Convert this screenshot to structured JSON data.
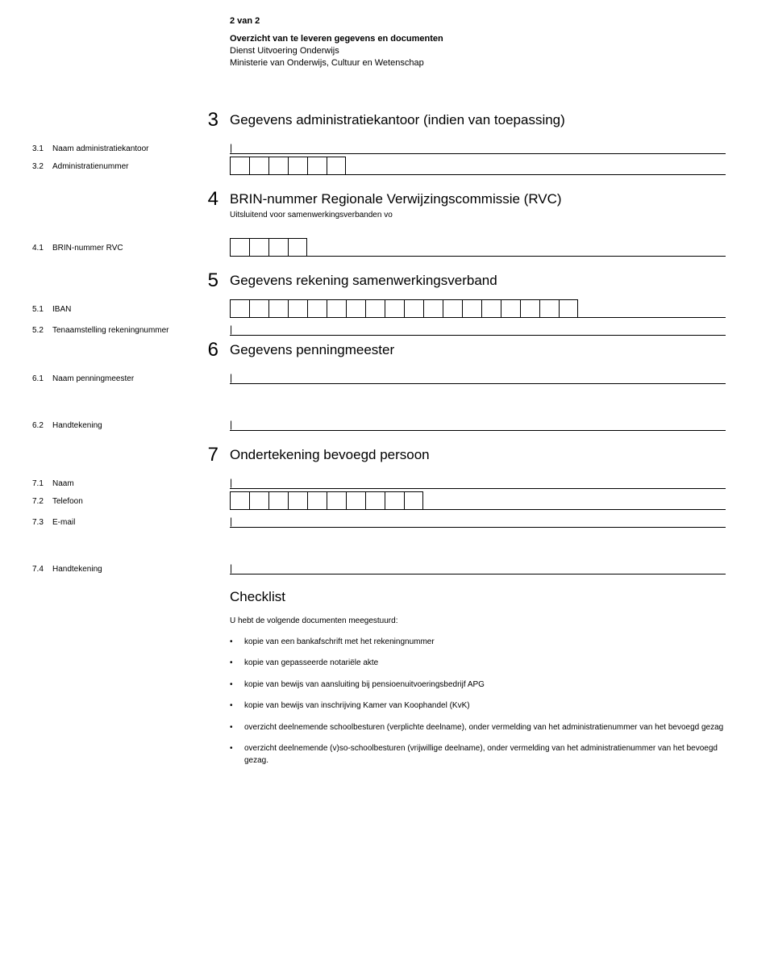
{
  "header": {
    "page": "2 van 2",
    "title": "Overzicht van te leveren gegevens en documenten",
    "line1": "Dienst Uitvoering Onderwijs",
    "line2": "Ministerie van Onderwijs, Cultuur en Wetenschap"
  },
  "s3": {
    "num": "3",
    "title": "Gegevens administratiekantoor (indien van toepassing)",
    "f1_num": "3.1",
    "f1_label": "Naam administratiekantoor",
    "f2_num": "3.2",
    "f2_label": "Administratienummer",
    "f2_boxes": 6
  },
  "s4": {
    "num": "4",
    "title": "BRIN-nummer Regionale Verwijzingscommissie (RVC)",
    "sub": "Uitsluitend voor samenwerkingsverbanden vo",
    "f1_num": "4.1",
    "f1_label": "BRIN-nummer RVC",
    "f1_boxes": 4
  },
  "s5": {
    "num": "5",
    "title": "Gegevens rekening samenwerkingsverband",
    "f1_num": "5.1",
    "f1_label": "IBAN",
    "f1_boxes": 18,
    "f2_num": "5.2",
    "f2_label": "Tenaamstelling rekening­nummer"
  },
  "s6": {
    "num": "6",
    "title": "Gegevens penningmeester",
    "f1_num": "6.1",
    "f1_label": "Naam penningmeester",
    "f2_num": "6.2",
    "f2_label": "Handtekening"
  },
  "s7": {
    "num": "7",
    "title": "Ondertekening bevoegd persoon",
    "f1_num": "7.1",
    "f1_label": "Naam",
    "f2_num": "7.2",
    "f2_label": "Telefoon",
    "f2_boxes": 10,
    "f3_num": "7.3",
    "f3_label": "E-mail",
    "f4_num": "7.4",
    "f4_label": "Handtekening"
  },
  "checklist": {
    "title": "Checklist",
    "intro": "U hebt de volgende documenten meegestuurd:",
    "items": [
      "kopie van een bankafschrift met het rekeningnummer",
      "kopie van gepasseerde notariële akte",
      "kopie van bewijs van aansluiting bij pensioenuitvoeringsbedrijf APG",
      "kopie van bewijs van inschrijving Kamer van Koophandel (KvK)",
      "overzicht deelnemende schoolbesturen (verplichte deelname), onder vermelding van het administratie­nummer van het bevoegd gezag",
      "overzicht deelnemende (v)so-schoolbesturen (vrijwillige deelname), onder vermelding van het administratie­nummer van het bevoegd gezag."
    ]
  }
}
